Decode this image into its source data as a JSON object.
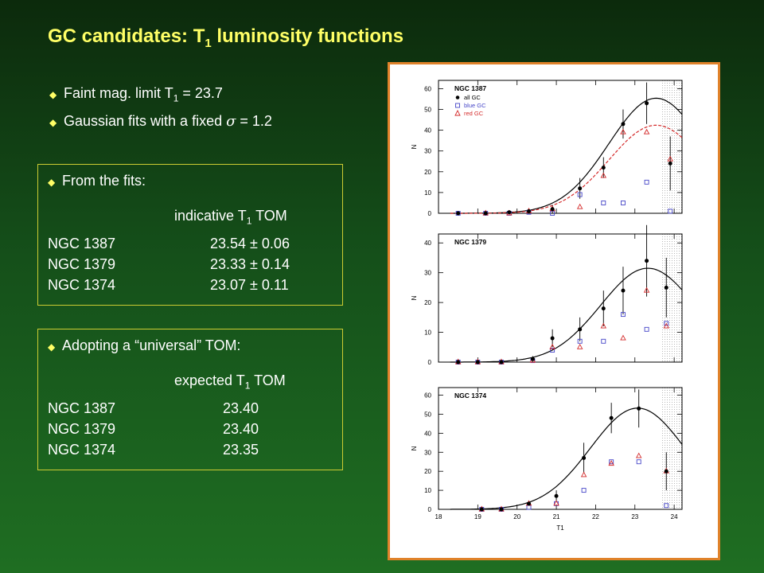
{
  "slide": {
    "title_main": "GC candidates:  T",
    "title_sub": "1",
    "title_rest": " luminosity functions"
  },
  "bullets": {
    "b1_pre": "Faint mag.  limit T",
    "b1_sub": "1",
    "b1_post": " = 23.7",
    "b2_pre": "Gaussian fits with a fixed ",
    "b2_sym": "σ",
    "b2_post": " = 1.2"
  },
  "fits_box": {
    "bullet": "From the fits:",
    "head_pre": "indicative T",
    "head_sub": "1",
    "head_post": " TOM",
    "rows": [
      {
        "name": "NGC 1387",
        "value": "23.54 ± 0.06"
      },
      {
        "name": "NGC 1379",
        "value": "23.33 ± 0.14"
      },
      {
        "name": "NGC 1374",
        "value": "23.07 ± 0.11"
      }
    ]
  },
  "universal_box": {
    "bullet": "Adopting a “universal”  TOM:",
    "head_pre": "expected T",
    "head_sub": "1",
    "head_post": " TOM",
    "rows": [
      {
        "name": "NGC 1387",
        "value": "23.40"
      },
      {
        "name": "NGC 1379",
        "value": "23.40"
      },
      {
        "name": "NGC 1374",
        "value": "23.35"
      }
    ]
  },
  "colors": {
    "title": "#ffff66",
    "box_border": "#cccc33",
    "panel_border": "#e0822a",
    "blue_gc": "#4646c8",
    "red_gc": "#d42a2a"
  },
  "chart_data": [
    {
      "type": "scatter",
      "label": "NGC 1387",
      "xlabel": "",
      "ylabel": "N",
      "xlim": [
        18,
        24.2
      ],
      "ylim": [
        0,
        64
      ],
      "yticks": [
        0,
        10,
        20,
        30,
        40,
        50,
        60
      ],
      "xticks": [
        18,
        19,
        20,
        21,
        22,
        23,
        24
      ],
      "show_xtick_labels": false,
      "faint_limit": 23.7,
      "legend": [
        "all GC",
        "blue GC",
        "red GC"
      ],
      "all_gc": [
        [
          18.5,
          0
        ],
        [
          19.2,
          0
        ],
        [
          19.8,
          0.5
        ],
        [
          20.3,
          1
        ],
        [
          20.9,
          2
        ],
        [
          21.6,
          12
        ],
        [
          22.2,
          22
        ],
        [
          22.7,
          43
        ],
        [
          23.3,
          53
        ],
        [
          23.9,
          24
        ]
      ],
      "all_gc_err": [
        0,
        0,
        0,
        1,
        2,
        5,
        5,
        7,
        10,
        13
      ],
      "blue_gc": [
        [
          18.5,
          0
        ],
        [
          19.2,
          0
        ],
        [
          19.8,
          0
        ],
        [
          20.3,
          0.5
        ],
        [
          20.9,
          0
        ],
        [
          21.6,
          9
        ],
        [
          22.2,
          5
        ],
        [
          22.7,
          5
        ],
        [
          23.3,
          15
        ],
        [
          23.9,
          1
        ]
      ],
      "red_gc": [
        [
          19.2,
          0
        ],
        [
          19.8,
          0
        ],
        [
          20.3,
          1
        ],
        [
          20.9,
          2
        ],
        [
          21.6,
          3
        ],
        [
          22.2,
          18
        ],
        [
          22.7,
          39
        ],
        [
          23.3,
          39
        ],
        [
          23.9,
          26
        ]
      ],
      "fit_all": {
        "peak": 23.54,
        "amp": 55.4,
        "sigma": 1.2
      },
      "fit_red": {
        "peak": 23.54,
        "amp": 42.4,
        "sigma": 1.2
      }
    },
    {
      "type": "scatter",
      "label": "NGC 1379",
      "xlabel": "",
      "ylabel": "N",
      "xlim": [
        18,
        24.2
      ],
      "ylim": [
        0,
        43
      ],
      "yticks": [
        0,
        10,
        20,
        30,
        40
      ],
      "xticks": [
        18,
        19,
        20,
        21,
        22,
        23,
        24
      ],
      "show_xtick_labels": false,
      "faint_limit": 23.7,
      "all_gc": [
        [
          18.5,
          0
        ],
        [
          19.0,
          0
        ],
        [
          19.6,
          0
        ],
        [
          20.4,
          1
        ],
        [
          20.9,
          8
        ],
        [
          21.6,
          11
        ],
        [
          22.2,
          18
        ],
        [
          22.7,
          24
        ],
        [
          23.3,
          34
        ],
        [
          23.8,
          25
        ]
      ],
      "all_gc_err": [
        0,
        0,
        0,
        1,
        3,
        4,
        6,
        8,
        12,
        10
      ],
      "blue_gc": [
        [
          18.5,
          0
        ],
        [
          19.0,
          0
        ],
        [
          19.6,
          0
        ],
        [
          20.4,
          0.5
        ],
        [
          20.9,
          4
        ],
        [
          21.6,
          7
        ],
        [
          22.2,
          7
        ],
        [
          22.7,
          16
        ],
        [
          23.3,
          11
        ],
        [
          23.8,
          13
        ]
      ],
      "red_gc": [
        [
          18.5,
          0
        ],
        [
          19.0,
          0
        ],
        [
          19.6,
          0
        ],
        [
          20.4,
          0.5
        ],
        [
          20.9,
          5
        ],
        [
          21.6,
          5
        ],
        [
          22.2,
          12
        ],
        [
          22.7,
          8
        ],
        [
          23.3,
          24
        ],
        [
          23.8,
          12
        ]
      ],
      "fit_all": {
        "peak": 23.33,
        "amp": 31.5,
        "sigma": 1.2
      }
    },
    {
      "type": "scatter",
      "label": "NGC 1374",
      "xlabel": "T1",
      "ylabel": "N",
      "xlim": [
        18,
        24.2
      ],
      "ylim": [
        0,
        64
      ],
      "yticks": [
        0,
        10,
        20,
        30,
        40,
        50,
        60
      ],
      "xticks": [
        18,
        19,
        20,
        21,
        22,
        23,
        24
      ],
      "show_xtick_labels": true,
      "faint_limit": 23.7,
      "all_gc": [
        [
          19.1,
          0
        ],
        [
          19.6,
          0
        ],
        [
          20.3,
          3
        ],
        [
          21.0,
          7
        ],
        [
          21.7,
          27
        ],
        [
          22.4,
          48
        ],
        [
          23.1,
          53
        ],
        [
          23.8,
          20
        ]
      ],
      "all_gc_err": [
        0,
        0,
        1,
        3,
        8,
        8,
        10,
        10
      ],
      "blue_gc": [
        [
          19.1,
          0
        ],
        [
          19.6,
          0
        ],
        [
          20.3,
          1
        ],
        [
          21.0,
          3
        ],
        [
          21.7,
          10
        ],
        [
          22.4,
          25
        ],
        [
          23.1,
          25
        ],
        [
          23.8,
          2
        ]
      ],
      "red_gc": [
        [
          19.1,
          0
        ],
        [
          19.6,
          0
        ],
        [
          20.3,
          3
        ],
        [
          21.0,
          3
        ],
        [
          21.7,
          18
        ],
        [
          22.4,
          24
        ],
        [
          23.1,
          28
        ],
        [
          23.8,
          20
        ]
      ],
      "fit_all": {
        "peak": 23.07,
        "amp": 53.2,
        "sigma": 1.2
      }
    }
  ]
}
